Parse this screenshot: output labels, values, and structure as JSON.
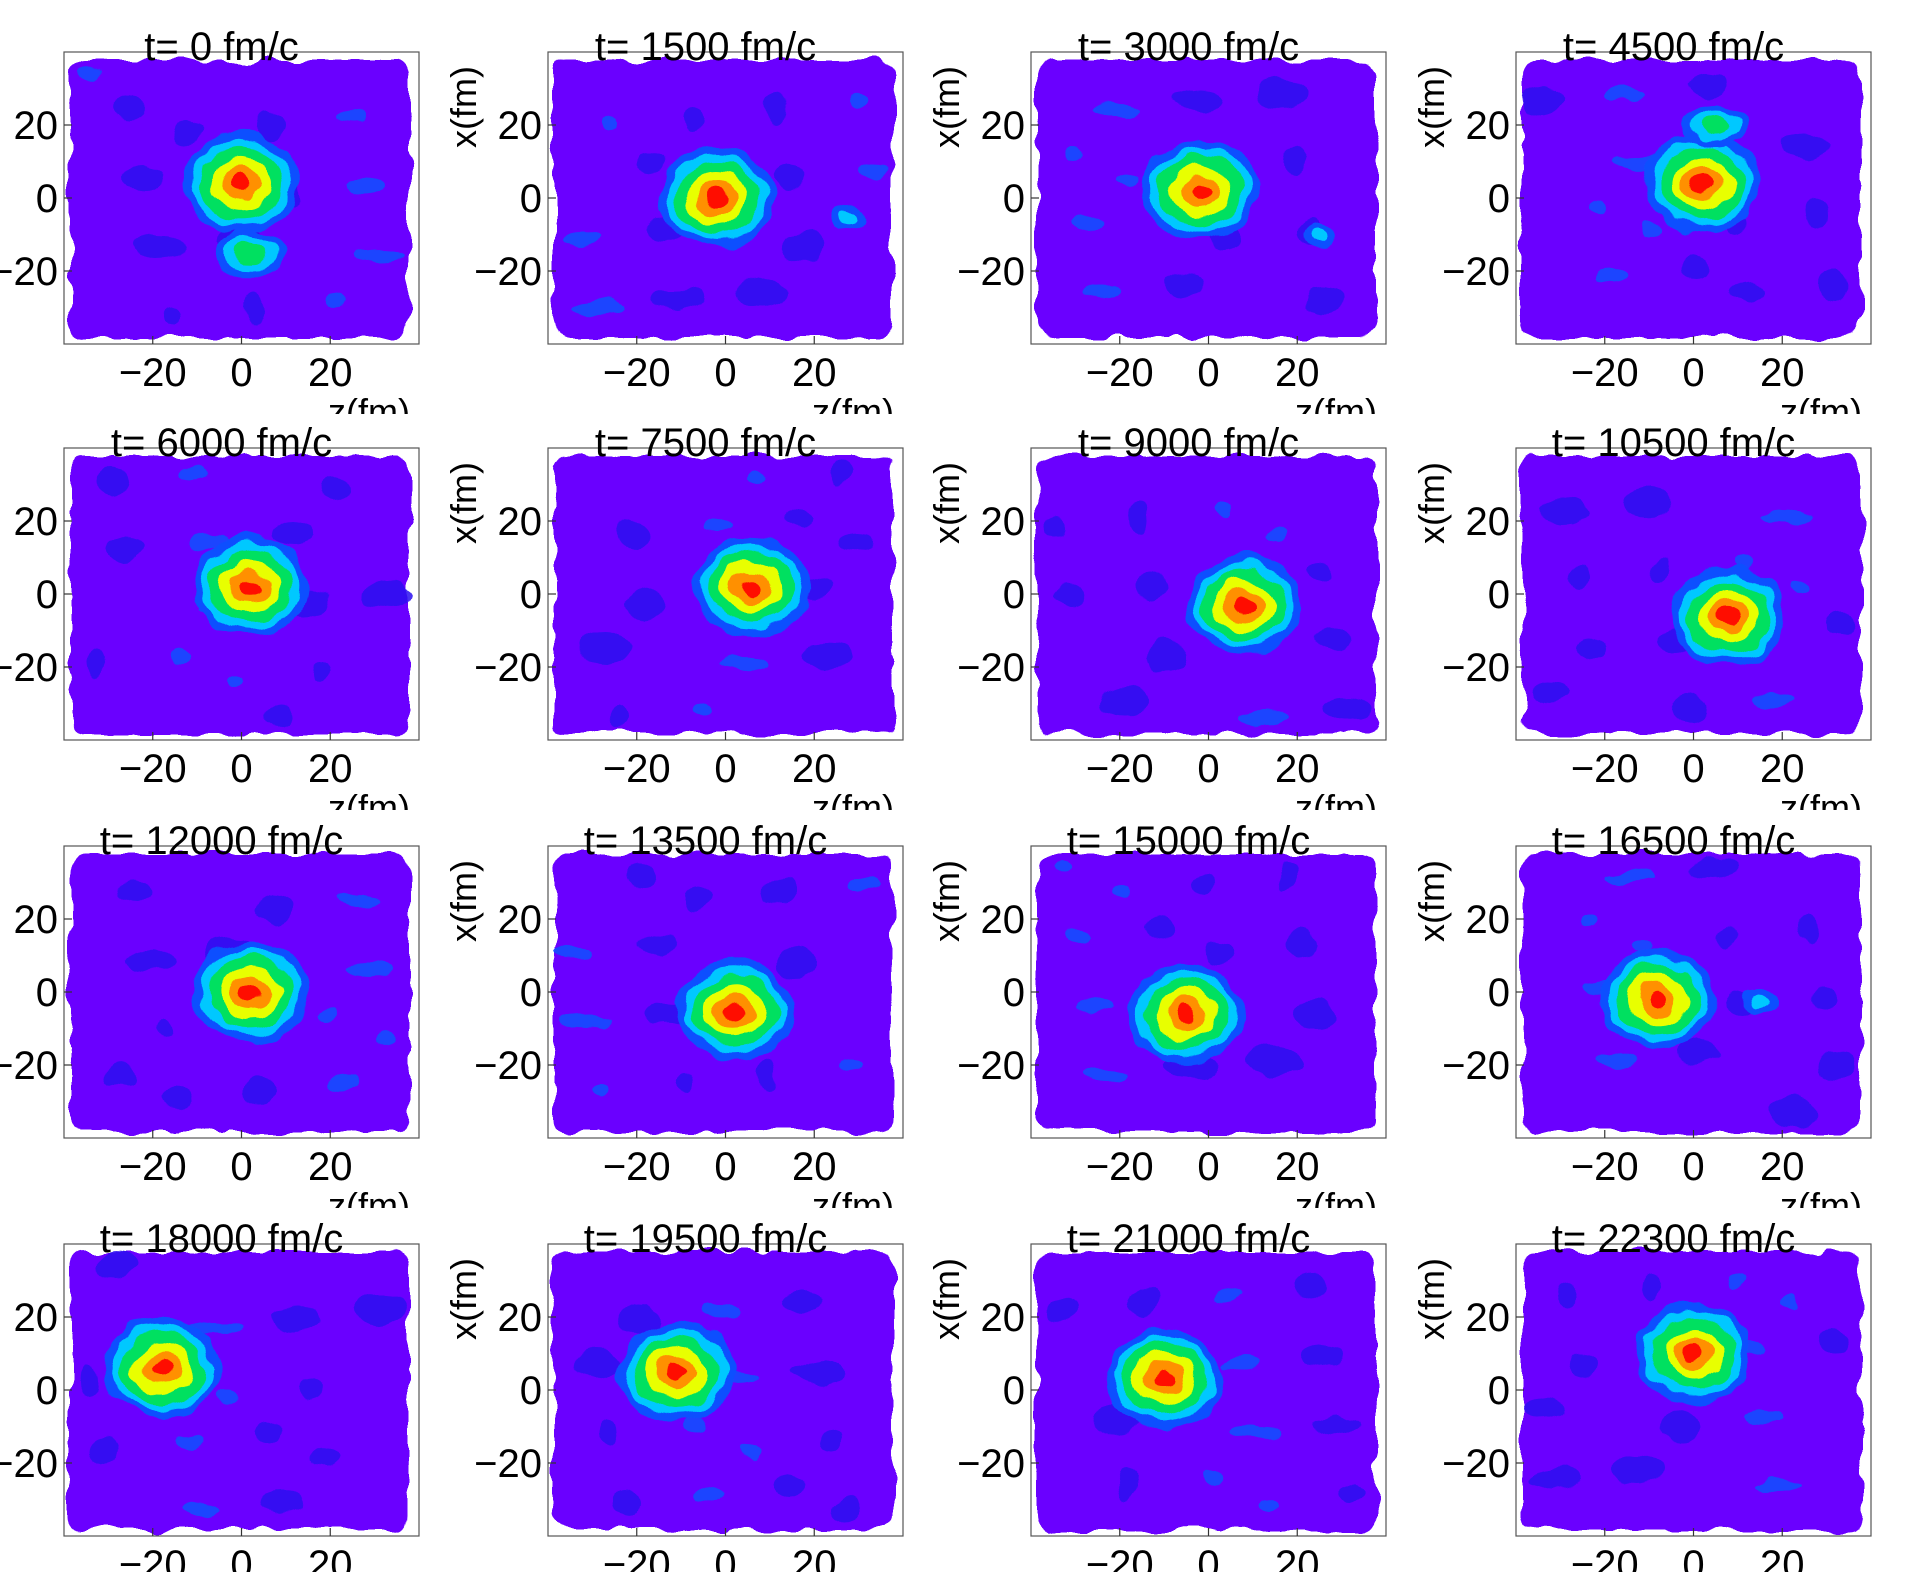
{
  "figure": {
    "panel_count": 16,
    "xlabel": "z(fm)",
    "ylabel": "x(fm)",
    "xticks": [
      -20,
      0,
      20
    ],
    "yticks": [
      20,
      0,
      -20
    ],
    "colors": {
      "low": "#6a00ff",
      "mid_low": "#2a10f0",
      "blue": "#1050ff",
      "cyan": "#00c8ff",
      "green": "#00e060",
      "yellow": "#e8ff00",
      "orange": "#ff9000",
      "red": "#ff1000",
      "gap": "#ffffff"
    }
  },
  "chart_data": [
    {
      "type": "heatmap",
      "title": "t= 0 fm/c",
      "xlabel": "z(fm)",
      "ylabel": "",
      "xlim": [
        -40,
        40
      ],
      "ylim": [
        -40,
        40
      ],
      "blobs": [
        {
          "z": 0,
          "x": 4,
          "peak": "red"
        },
        {
          "z": 2,
          "x": -15,
          "peak": "green"
        }
      ]
    },
    {
      "type": "heatmap",
      "title": "t= 1500 fm/c",
      "xlabel": "z(fm)",
      "ylabel": "x(fm)",
      "xlim": [
        -40,
        40
      ],
      "ylim": [
        -40,
        40
      ],
      "blobs": [
        {
          "z": -2,
          "x": 0,
          "peak": "red"
        },
        {
          "z": 28,
          "x": -5,
          "peak": "cyan"
        }
      ]
    },
    {
      "type": "heatmap",
      "title": "t= 3000 fm/c",
      "xlabel": "z(fm)",
      "ylabel": "x(fm)",
      "xlim": [
        -40,
        40
      ],
      "ylim": [
        -40,
        40
      ],
      "blobs": [
        {
          "z": -2,
          "x": 2,
          "peak": "red"
        },
        {
          "z": 25,
          "x": -10,
          "peak": "cyan"
        }
      ]
    },
    {
      "type": "heatmap",
      "title": "t= 4500 fm/c",
      "xlabel": "z(fm)",
      "ylabel": "x(fm)",
      "xlim": [
        -40,
        40
      ],
      "ylim": [
        -40,
        40
      ],
      "blobs": [
        {
          "z": 2,
          "x": 4,
          "peak": "red"
        },
        {
          "z": 5,
          "x": 20,
          "peak": "green"
        }
      ]
    },
    {
      "type": "heatmap",
      "title": "t= 6000 fm/c",
      "xlabel": "z(fm)",
      "ylabel": "",
      "xlim": [
        -40,
        40
      ],
      "ylim": [
        -40,
        40
      ],
      "blobs": [
        {
          "z": 2,
          "x": 2,
          "peak": "red"
        }
      ]
    },
    {
      "type": "heatmap",
      "title": "t= 7500 fm/c",
      "xlabel": "z(fm)",
      "ylabel": "x(fm)",
      "xlim": [
        -40,
        40
      ],
      "ylim": [
        -40,
        40
      ],
      "blobs": [
        {
          "z": 6,
          "x": 2,
          "peak": "red"
        }
      ]
    },
    {
      "type": "heatmap",
      "title": "t= 9000 fm/c",
      "xlabel": "z(fm)",
      "ylabel": "x(fm)",
      "xlim": [
        -40,
        40
      ],
      "ylim": [
        -40,
        40
      ],
      "blobs": [
        {
          "z": 8,
          "x": -3,
          "peak": "red"
        }
      ]
    },
    {
      "type": "heatmap",
      "title": "t= 10500 fm/c",
      "xlabel": "z(fm)",
      "ylabel": "x(fm)",
      "xlim": [
        -40,
        40
      ],
      "ylim": [
        -40,
        40
      ],
      "blobs": [
        {
          "z": 8,
          "x": -6,
          "peak": "red"
        }
      ]
    },
    {
      "type": "heatmap",
      "title": "t= 12000 fm/c",
      "xlabel": "z(fm)",
      "ylabel": "",
      "xlim": [
        -40,
        40
      ],
      "ylim": [
        -40,
        40
      ],
      "blobs": [
        {
          "z": 2,
          "x": 0,
          "peak": "red"
        }
      ]
    },
    {
      "type": "heatmap",
      "title": "t= 13500 fm/c",
      "xlabel": "z(fm)",
      "ylabel": "x(fm)",
      "xlim": [
        -40,
        40
      ],
      "ylim": [
        -40,
        40
      ],
      "blobs": [
        {
          "z": 2,
          "x": -5,
          "peak": "red"
        }
      ]
    },
    {
      "type": "heatmap",
      "title": "t= 15000 fm/c",
      "xlabel": "z(fm)",
      "ylabel": "x(fm)",
      "xlim": [
        -40,
        40
      ],
      "ylim": [
        -40,
        40
      ],
      "blobs": [
        {
          "z": -5,
          "x": -6,
          "peak": "red"
        }
      ]
    },
    {
      "type": "heatmap",
      "title": "t= 16500 fm/c",
      "xlabel": "z(fm)",
      "ylabel": "x(fm)",
      "xlim": [
        -40,
        40
      ],
      "ylim": [
        -40,
        40
      ],
      "blobs": [
        {
          "z": -8,
          "x": -2,
          "peak": "red"
        },
        {
          "z": 15,
          "x": -3,
          "peak": "cyan"
        }
      ]
    },
    {
      "type": "heatmap",
      "title": "t= 18000 fm/c",
      "xlabel": "",
      "ylabel": "",
      "xlim": [
        -40,
        40
      ],
      "ylim": [
        -40,
        40
      ],
      "blobs": [
        {
          "z": -18,
          "x": 6,
          "peak": "red"
        }
      ]
    },
    {
      "type": "heatmap",
      "title": "t= 19500 fm/c",
      "xlabel": "",
      "ylabel": "x(fm)",
      "xlim": [
        -40,
        40
      ],
      "ylim": [
        -40,
        40
      ],
      "blobs": [
        {
          "z": -11,
          "x": 5,
          "peak": "red"
        }
      ]
    },
    {
      "type": "heatmap",
      "title": "t= 21000 fm/c",
      "xlabel": "",
      "ylabel": "x(fm)",
      "xlim": [
        -40,
        40
      ],
      "ylim": [
        -40,
        40
      ],
      "blobs": [
        {
          "z": -10,
          "x": 3,
          "peak": "red"
        }
      ]
    },
    {
      "type": "heatmap",
      "title": "t= 22300 fm/c",
      "xlabel": "",
      "ylabel": "x(fm)",
      "xlim": [
        -40,
        40
      ],
      "ylim": [
        -40,
        40
      ],
      "blobs": [
        {
          "z": 0,
          "x": 10,
          "peak": "red"
        }
      ]
    }
  ]
}
